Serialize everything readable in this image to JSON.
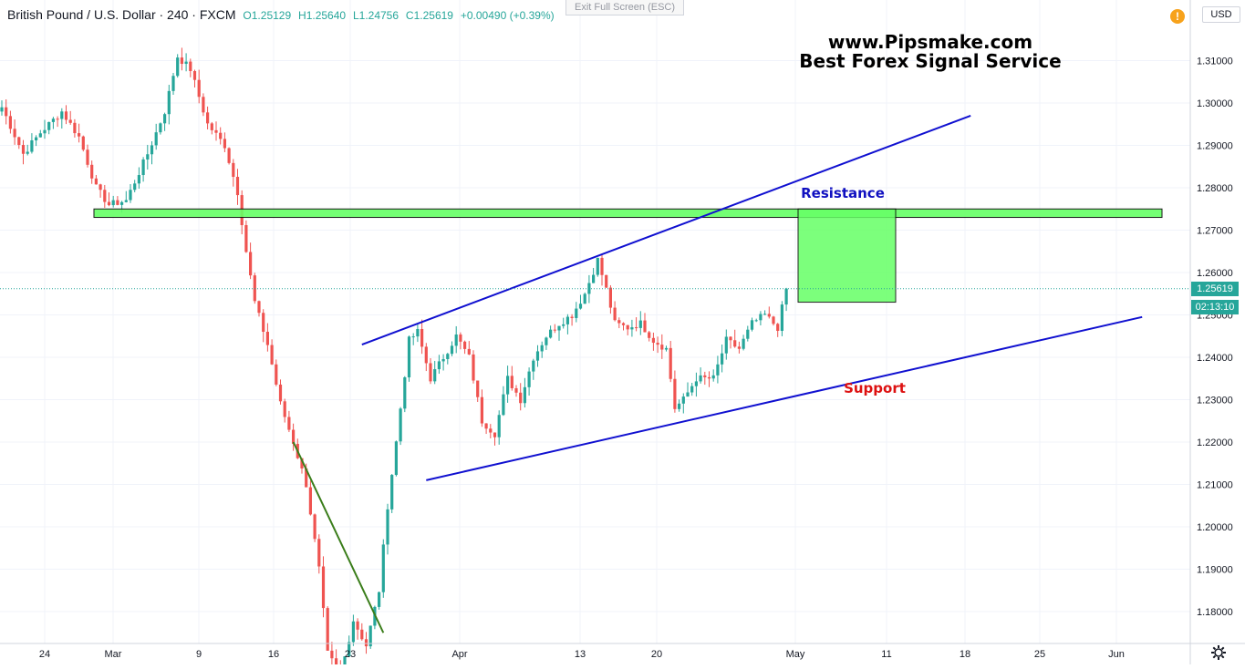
{
  "header": {
    "symbol": "British Pound / U.S. Dollar · 240 · FXCM",
    "open": "O1.25129",
    "high": "H1.25640",
    "low": "L1.24756",
    "close": "C1.25619",
    "change": "+0.00490 (+0.39%)"
  },
  "toolbar": {
    "exit_fullscreen_label": "Exit Full Screen (ESC)",
    "currency_label": "USD",
    "alert_icon": "!"
  },
  "price_axis": {
    "current_price": "1.25619",
    "countdown": "02:13:10"
  },
  "watermark": {
    "line1": "www.Pipsmake.com",
    "line2": "Best Forex Signal Service"
  },
  "annotations": {
    "resistance": "Resistance",
    "support": "Support"
  },
  "colors": {
    "up": "#26a69a",
    "down": "#ef5350",
    "trendline": "#1010d0",
    "green_zone": "#66ff66",
    "green_line": "#3a7d1a",
    "resistance_text": "#1010c0",
    "support_text": "#dd1111"
  },
  "chart_data": {
    "type": "candlestick",
    "instrument": "British Pound / U.S. Dollar",
    "timeframe": "240",
    "x_tick_labels": [
      "24",
      "Mar",
      "9",
      "16",
      "23",
      "Apr",
      "13",
      "20",
      "May",
      "11",
      "18",
      "25",
      "Jun"
    ],
    "y_tick_labels": [
      "1.31000",
      "1.30000",
      "1.29000",
      "1.28000",
      "1.27000",
      "1.26000",
      "1.25000",
      "1.24000",
      "1.23000",
      "1.22000",
      "1.21000",
      "1.20000",
      "1.19000",
      "1.18000"
    ],
    "y_ticks": [
      1.31,
      1.3,
      1.29,
      1.28,
      1.27,
      1.26,
      1.25,
      1.24,
      1.23,
      1.22,
      1.21,
      1.2,
      1.19,
      1.18
    ],
    "ylim": [
      1.1735,
      1.3165
    ],
    "price_path": [
      [
        0,
        1.299
      ],
      [
        5,
        1.288
      ],
      [
        9,
        1.293
      ],
      [
        14,
        1.298
      ],
      [
        18,
        1.292
      ],
      [
        22,
        1.28
      ],
      [
        25,
        1.276
      ],
      [
        29,
        1.277
      ],
      [
        34,
        1.288
      ],
      [
        38,
        1.298
      ],
      [
        41,
        1.311
      ],
      [
        44,
        1.308
      ],
      [
        48,
        1.295
      ],
      [
        52,
        1.29
      ],
      [
        55,
        1.279
      ],
      [
        57,
        1.265
      ],
      [
        59,
        1.253
      ],
      [
        62,
        1.243
      ],
      [
        65,
        1.229
      ],
      [
        68,
        1.22
      ],
      [
        71,
        1.21
      ],
      [
        74,
        1.19
      ],
      [
        76,
        1.17
      ],
      [
        79,
        1.165
      ],
      [
        82,
        1.178
      ],
      [
        85,
        1.172
      ],
      [
        88,
        1.185
      ],
      [
        90,
        1.205
      ],
      [
        92,
        1.22
      ],
      [
        95,
        1.244
      ],
      [
        97,
        1.246
      ],
      [
        100,
        1.235
      ],
      [
        103,
        1.24
      ],
      [
        106,
        1.245
      ],
      [
        109,
        1.24
      ],
      [
        112,
        1.225
      ],
      [
        115,
        1.222
      ],
      [
        118,
        1.235
      ],
      [
        121,
        1.23
      ],
      [
        124,
        1.24
      ],
      [
        127,
        1.245
      ],
      [
        130,
        1.248
      ],
      [
        133,
        1.25
      ],
      [
        136,
        1.255
      ],
      [
        139,
        1.263
      ],
      [
        141,
        1.256
      ],
      [
        143,
        1.248
      ],
      [
        146,
        1.247
      ],
      [
        149,
        1.248
      ],
      [
        152,
        1.244
      ],
      [
        155,
        1.242
      ],
      [
        157,
        1.228
      ],
      [
        159,
        1.23
      ],
      [
        162,
        1.235
      ],
      [
        166,
        1.235
      ],
      [
        169,
        1.244
      ],
      [
        172,
        1.242
      ],
      [
        175,
        1.248
      ],
      [
        178,
        1.25
      ],
      [
        181,
        1.247
      ],
      [
        183,
        1.2562
      ]
    ],
    "horizontal_zone": {
      "label": "Resistance",
      "from": 1.273,
      "to": 1.275
    },
    "upper_trendline": {
      "from": [
        84,
        1.243
      ],
      "to": [
        226,
        1.297
      ]
    },
    "lower_trendline": {
      "from": [
        99,
        1.211
      ],
      "to": [
        266,
        1.2495
      ]
    },
    "downtrend_line": {
      "from": [
        68,
        1.22
      ],
      "to": [
        89,
        1.175
      ]
    },
    "target_box": {
      "from_price": 1.253,
      "to_price": 1.275
    },
    "last_price": 1.25619,
    "grid": true
  }
}
